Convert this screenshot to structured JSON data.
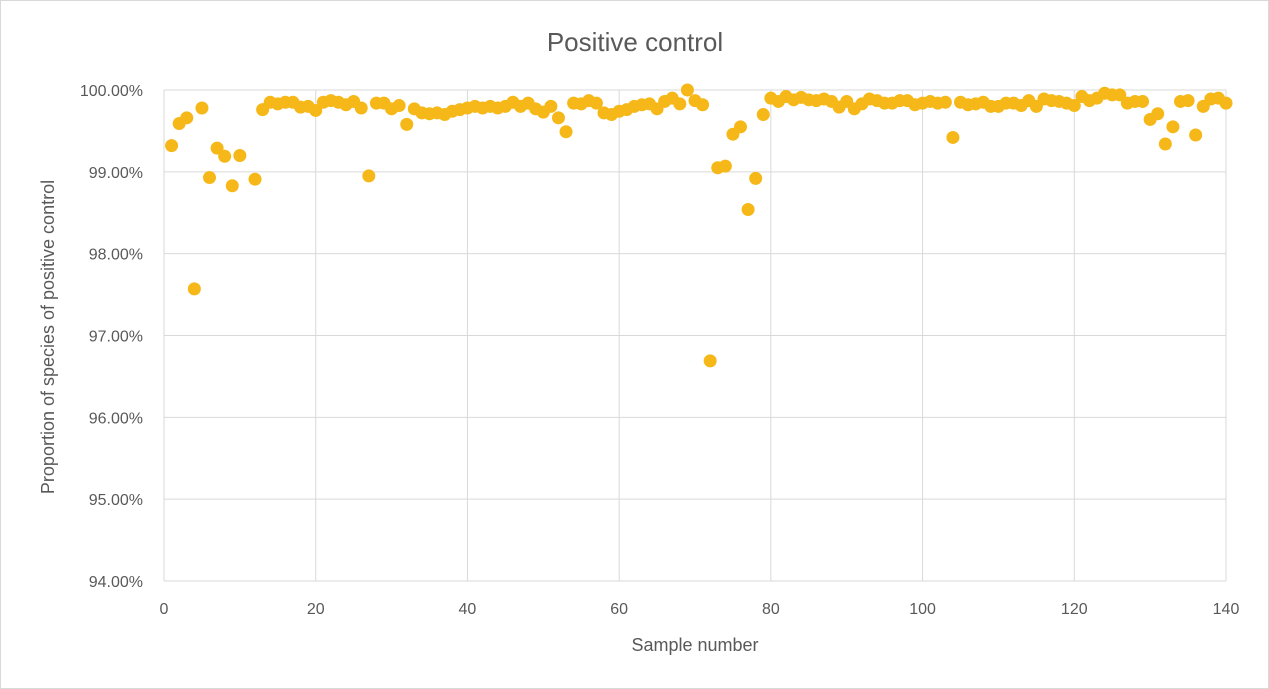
{
  "chart_data": {
    "type": "scatter",
    "title": "Positive control",
    "xlabel": "Sample number",
    "ylabel": "Proportion of species of positive control",
    "xlim": [
      0,
      140
    ],
    "ylim": [
      94.0,
      100.0
    ],
    "x_ticks": [
      0,
      20,
      40,
      60,
      80,
      100,
      120,
      140
    ],
    "y_ticks": [
      94.0,
      95.0,
      96.0,
      97.0,
      98.0,
      99.0,
      100.0
    ],
    "x_tick_labels": [
      "0",
      "20",
      "40",
      "60",
      "80",
      "100",
      "120",
      "140"
    ],
    "y_tick_labels": [
      "94.00%",
      "95.00%",
      "96.00%",
      "97.00%",
      "98.00%",
      "99.00%",
      "100.00%"
    ],
    "grid": true,
    "marker_color": "#f6b818",
    "series": [
      {
        "x": [
          1,
          2,
          3,
          4,
          5,
          6,
          7,
          8,
          9,
          10,
          11,
          12,
          13,
          14,
          15,
          16,
          17,
          18,
          19,
          20,
          21,
          22,
          23,
          24,
          25,
          26,
          27,
          28,
          29,
          30,
          31,
          32,
          33,
          34,
          35,
          36,
          37,
          38,
          39,
          40,
          41,
          42,
          43,
          44,
          45,
          46,
          47,
          48,
          49,
          50,
          51,
          52,
          53,
          54,
          55,
          56,
          57,
          58,
          59,
          60,
          61,
          62,
          63,
          64,
          65,
          66,
          67,
          68,
          69,
          70,
          71,
          72,
          73,
          74,
          75,
          76,
          77,
          78,
          79,
          80,
          81,
          82,
          83,
          84,
          85,
          86,
          87,
          88,
          89,
          90,
          91,
          92,
          93,
          94,
          95,
          96,
          97,
          98,
          99,
          100,
          101,
          102,
          103,
          104,
          105,
          106,
          107,
          108,
          109,
          110,
          111,
          112,
          113,
          114,
          115,
          116,
          117,
          118,
          119,
          120,
          121,
          122,
          123,
          124,
          125,
          126,
          127,
          128,
          129,
          130,
          131,
          132,
          133,
          134,
          135,
          136,
          137,
          138,
          139,
          140
        ],
        "y": [
          99.32,
          99.59,
          99.66,
          97.57,
          99.78,
          98.93,
          99.29,
          99.19,
          98.83,
          99.2,
          null,
          98.91,
          99.76,
          99.85,
          99.83,
          99.85,
          99.85,
          99.79,
          99.8,
          99.75,
          99.85,
          99.87,
          99.85,
          99.82,
          99.86,
          99.78,
          98.95,
          99.84,
          99.84,
          99.77,
          99.81,
          99.58,
          99.77,
          99.72,
          99.71,
          99.72,
          99.7,
          99.74,
          99.76,
          99.78,
          99.8,
          99.78,
          99.8,
          99.78,
          99.8,
          99.85,
          99.8,
          99.84,
          99.77,
          99.73,
          99.8,
          99.66,
          99.49,
          99.84,
          99.83,
          99.87,
          99.84,
          99.72,
          99.7,
          99.74,
          99.76,
          99.8,
          99.82,
          99.83,
          99.77,
          99.86,
          99.9,
          99.83,
          100.0,
          99.87,
          99.82,
          96.69,
          99.05,
          99.07,
          99.46,
          99.55,
          98.54,
          98.92,
          99.7,
          99.9,
          99.86,
          99.92,
          99.88,
          99.91,
          99.88,
          99.87,
          99.89,
          99.86,
          99.79,
          99.86,
          99.77,
          99.83,
          99.89,
          99.87,
          99.84,
          99.84,
          99.87,
          99.87,
          99.82,
          99.84,
          99.86,
          99.84,
          99.85,
          99.42,
          99.85,
          99.82,
          99.83,
          99.85,
          99.8,
          99.8,
          99.84,
          99.84,
          99.81,
          99.87,
          99.8,
          99.89,
          99.87,
          99.86,
          99.84,
          99.81,
          99.92,
          99.87,
          99.9,
          99.96,
          99.94,
          99.94,
          99.84,
          99.86,
          99.86,
          99.64,
          99.71,
          99.34,
          99.55,
          99.86,
          99.87,
          99.45,
          99.8,
          99.89,
          99.9,
          99.84
        ]
      }
    ]
  }
}
